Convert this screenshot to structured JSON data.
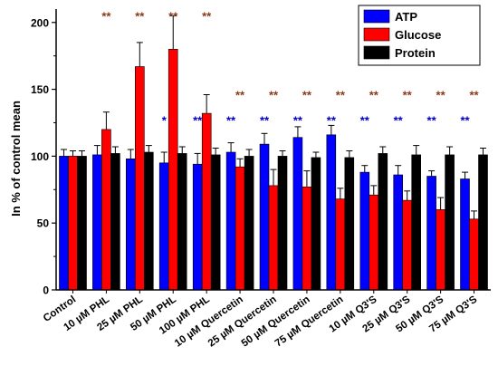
{
  "chart_data": {
    "type": "bar",
    "ylabel": "In % of control mean",
    "ylim": [
      0,
      210
    ],
    "yticks": [
      0,
      50,
      100,
      150,
      200
    ],
    "categories": [
      "Control",
      "10 µM PHL",
      "25 µM PHL",
      "50 µM PHL",
      "100 µM PHL",
      "10 µM Quercetin",
      "25 µM Quercetin",
      "50 µM Quercetin",
      "75 µM Quercetin",
      "10 µM Q3'S",
      "25 µM Q3'S",
      "50 µM Q3'S",
      "75 µM Q3'S"
    ],
    "series": [
      {
        "name": "ATP",
        "color": "#0000ff",
        "values": [
          100,
          101,
          98,
          95,
          94,
          103,
          109,
          114,
          116,
          88,
          86,
          85,
          83
        ],
        "errors": [
          5,
          7,
          7,
          8,
          8,
          7,
          8,
          8,
          7,
          5,
          7,
          4,
          5
        ]
      },
      {
        "name": "Glucose",
        "color": "#ff0000",
        "values": [
          100,
          120,
          167,
          180,
          132,
          92,
          78,
          77,
          68,
          71,
          67,
          60,
          53
        ],
        "errors": [
          4,
          13,
          18,
          25,
          14,
          6,
          12,
          12,
          8,
          7,
          7,
          9,
          6
        ]
      },
      {
        "name": "Protein",
        "color": "#000000",
        "values": [
          100,
          102,
          103,
          102,
          101,
          100,
          100,
          99,
          99,
          102,
          101,
          101,
          101
        ],
        "errors": [
          4,
          5,
          5,
          5,
          5,
          5,
          4,
          4,
          5,
          5,
          7,
          6,
          5
        ]
      }
    ],
    "significance": [
      {
        "category_index": 1,
        "series": "Glucose",
        "label": "**",
        "color": "#8b3a1a"
      },
      {
        "category_index": 2,
        "series": "Glucose",
        "label": "**",
        "color": "#8b3a1a"
      },
      {
        "category_index": 3,
        "series": "Glucose",
        "label": "**",
        "color": "#8b3a1a"
      },
      {
        "category_index": 4,
        "series": "Glucose",
        "label": "**",
        "color": "#8b3a1a"
      },
      {
        "category_index": 3,
        "series": "ATP",
        "label": "*",
        "color": "#0000cc"
      },
      {
        "category_index": 4,
        "series": "ATP",
        "label": "**",
        "color": "#0000cc"
      },
      {
        "category_index": 5,
        "series": "ATP",
        "label": "**",
        "color": "#0000cc"
      },
      {
        "category_index": 6,
        "series": "ATP",
        "label": "**",
        "color": "#0000cc"
      },
      {
        "category_index": 7,
        "series": "ATP",
        "label": "**",
        "color": "#0000cc"
      },
      {
        "category_index": 8,
        "series": "ATP",
        "label": "**",
        "color": "#0000cc"
      },
      {
        "category_index": 9,
        "series": "ATP",
        "label": "**",
        "color": "#0000cc"
      },
      {
        "category_index": 10,
        "series": "ATP",
        "label": "**",
        "color": "#0000cc"
      },
      {
        "category_index": 11,
        "series": "ATP",
        "label": "**",
        "color": "#0000cc"
      },
      {
        "category_index": 12,
        "series": "ATP",
        "label": "**",
        "color": "#0000cc"
      },
      {
        "category_index": 5,
        "series": "Glucose",
        "label": "**",
        "color": "#8b3a1a"
      },
      {
        "category_index": 6,
        "series": "Glucose",
        "label": "**",
        "color": "#8b3a1a"
      },
      {
        "category_index": 7,
        "series": "Glucose",
        "label": "**",
        "color": "#8b3a1a"
      },
      {
        "category_index": 8,
        "series": "Glucose",
        "label": "**",
        "color": "#8b3a1a"
      },
      {
        "category_index": 9,
        "series": "Glucose",
        "label": "**",
        "color": "#8b3a1a"
      },
      {
        "category_index": 10,
        "series": "Glucose",
        "label": "**",
        "color": "#8b3a1a"
      },
      {
        "category_index": 11,
        "series": "Glucose",
        "label": "**",
        "color": "#8b3a1a"
      },
      {
        "category_index": 12,
        "series": "Glucose",
        "label": "**",
        "color": "#8b3a1a"
      }
    ],
    "legend_position": "top-right",
    "grid": false
  }
}
